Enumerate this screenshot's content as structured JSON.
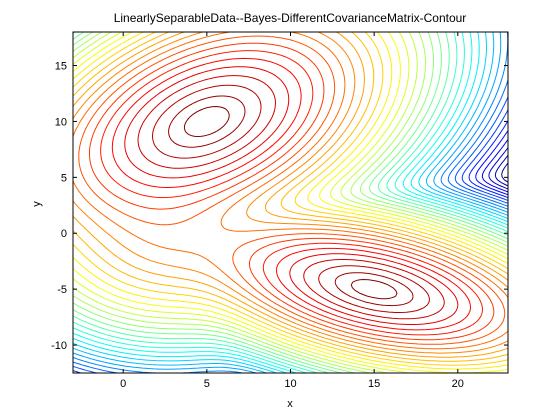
{
  "chart_data": {
    "type": "contour",
    "title": "LinearlySeparableData--Bayes-DifferentCovarianceMatrix-Contour",
    "xlabel": "x",
    "ylabel": "y",
    "xlim": [
      -3,
      23
    ],
    "ylim": [
      -12.5,
      18
    ],
    "xticks": [
      0,
      5,
      10,
      15,
      20
    ],
    "yticks": [
      -10,
      -5,
      0,
      5,
      10,
      15
    ],
    "grid": false,
    "legend": "none",
    "colormap": "jet",
    "class_means": [
      {
        "x": 5,
        "y": 10
      },
      {
        "x": 15,
        "y": -5
      }
    ],
    "secondary_well": {
      "x": 2.6,
      "y": -0.8
    },
    "level_count": 40
  }
}
